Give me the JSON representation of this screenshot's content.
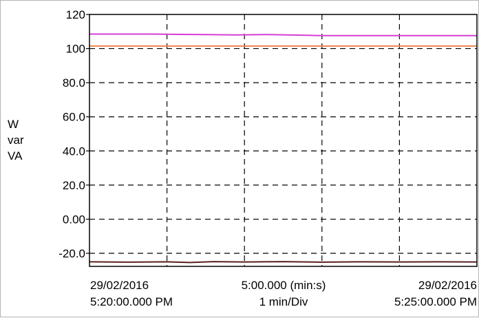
{
  "chart_data": {
    "type": "line",
    "y_units": [
      "W",
      "var",
      "VA"
    ],
    "yticks": [
      120,
      100,
      80.0,
      60.0,
      40.0,
      20.0,
      0.0,
      -20.0
    ],
    "ytick_labels": [
      "120",
      "100",
      "80.0",
      "60.0",
      "40.0",
      "20.0",
      "0.00",
      "-20.0"
    ],
    "ylim": [
      -25,
      120
    ],
    "x_minutes": [
      0,
      5
    ],
    "x_labels": {
      "left": {
        "date": "29/02/2016",
        "time": "5:20:00.000 PM"
      },
      "center": {
        "span": "5:00.000 (min:s)",
        "scale": "1 min/Div"
      },
      "right": {
        "date": "29/02/2016",
        "time": "5:25:00.000 PM"
      }
    },
    "grid": true,
    "series": [
      {
        "color": "#d63cd6",
        "x": [
          0,
          0.4,
          0.8,
          1.2,
          1.5,
          1.9,
          2.3,
          2.7,
          3.0,
          3.5,
          4.0,
          4.5,
          5.0
        ],
        "y": [
          108.5,
          108.5,
          108.5,
          108.3,
          108.2,
          108.0,
          108.2,
          107.9,
          107.6,
          107.6,
          107.6,
          107.6,
          107.6
        ]
      },
      {
        "color": "#f0824b",
        "x": [
          0,
          5
        ],
        "y": [
          101.5,
          101.5
        ]
      },
      {
        "color": "#5a1e1e",
        "x": [
          0,
          0.5,
          1.0,
          1.3,
          1.6,
          2.0,
          2.5,
          3.0,
          3.5,
          4.0,
          4.5,
          5.0
        ],
        "y": [
          -25.0,
          -25.2,
          -25.0,
          -25.4,
          -24.9,
          -25.1,
          -24.9,
          -25.2,
          -25.0,
          -25.1,
          -25.0,
          -25.1
        ]
      }
    ]
  }
}
